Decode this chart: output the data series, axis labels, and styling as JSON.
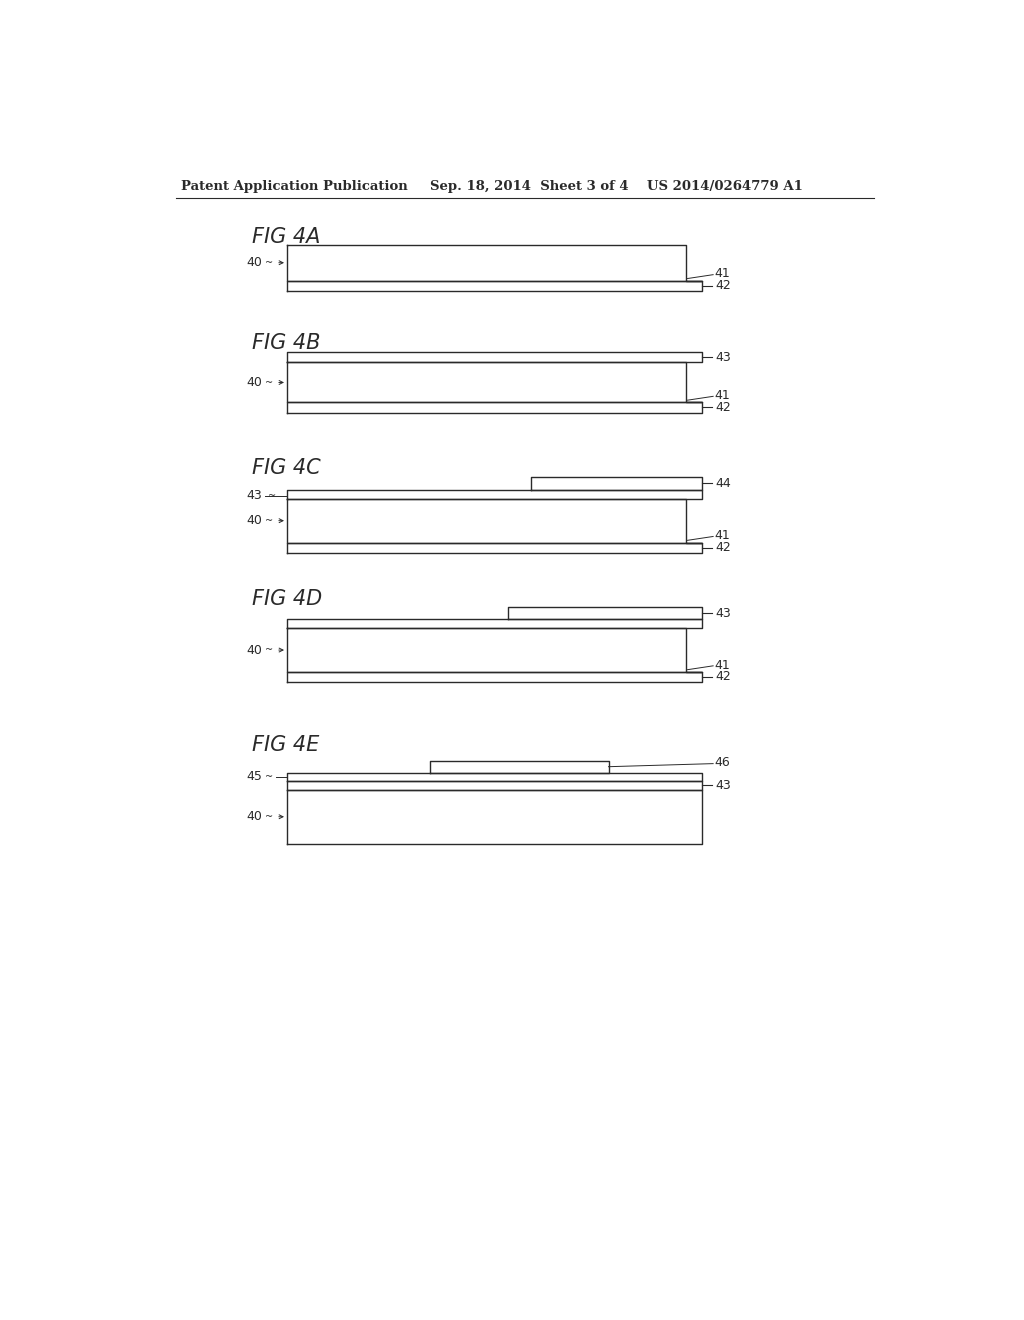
{
  "bg_color": "#ffffff",
  "line_color": "#2a2a2a",
  "lw": 1.0,
  "header_left": "Patent Application Publication",
  "header_mid": "Sep. 18, 2014  Sheet 3 of 4",
  "header_right": "US 2014/0264779 A1"
}
